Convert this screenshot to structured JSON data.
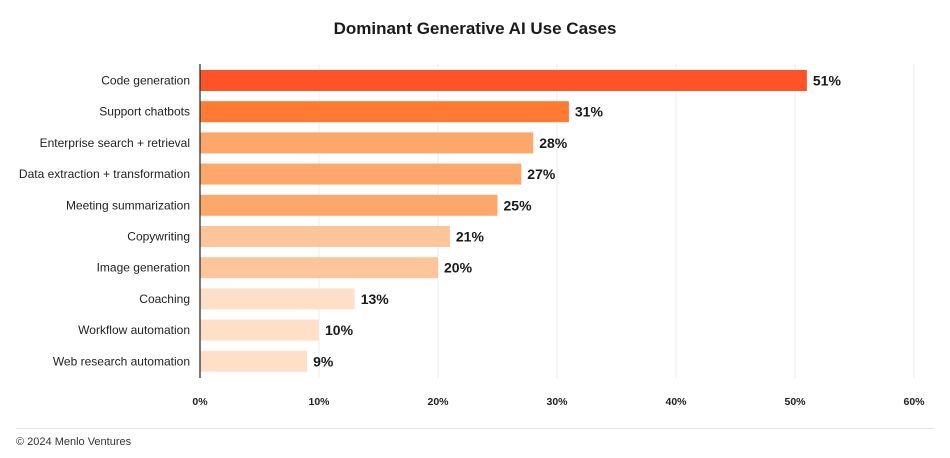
{
  "chart_data": {
    "type": "bar",
    "orientation": "horizontal",
    "title": "Dominant Generative AI Use Cases",
    "categories": [
      "Code generation",
      "Support chatbots",
      "Enterprise search + retrieval",
      "Data extraction + transformation",
      "Meeting summarization",
      "Copywriting",
      "Image generation",
      "Coaching",
      "Workflow automation",
      "Web research automation"
    ],
    "values": [
      51,
      31,
      28,
      27,
      25,
      21,
      20,
      13,
      10,
      9
    ],
    "value_labels": [
      "51%",
      "31%",
      "28%",
      "27%",
      "25%",
      "21%",
      "20%",
      "13%",
      "10%",
      "9%"
    ],
    "bar_colors": [
      "#ff5227",
      "#ff7a33",
      "#fda86a",
      "#fda86a",
      "#fda86a",
      "#fec49a",
      "#fec49a",
      "#fee0c9",
      "#fee0c9",
      "#fee0c9"
    ],
    "xlim": [
      0,
      60
    ],
    "xticks": [
      0,
      10,
      20,
      30,
      40,
      50,
      60
    ],
    "xtick_labels": [
      "0%",
      "10%",
      "20%",
      "30%",
      "40%",
      "50%",
      "60%"
    ],
    "grid": "vertical",
    "legend": "none"
  },
  "footer": {
    "credit": "© 2024 Menlo Ventures"
  },
  "colors": {
    "gridline": "#ececec",
    "axis": "#222222",
    "text": "#222222"
  }
}
